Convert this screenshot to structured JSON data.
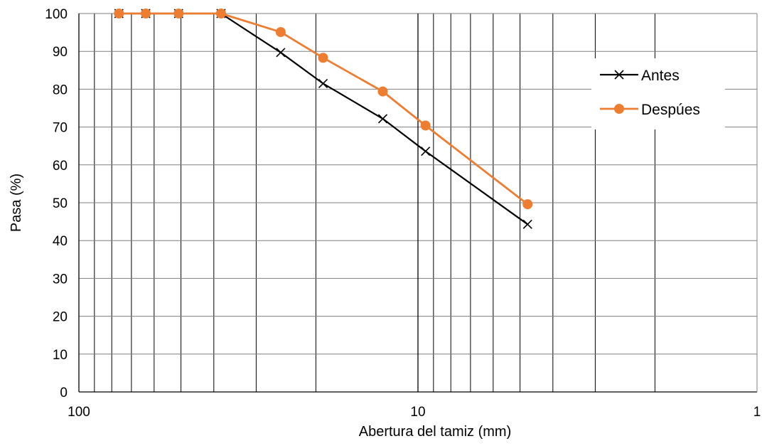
{
  "chart_data": {
    "type": "line",
    "title": "",
    "xlabel": "Abertura del tamiz (mm)",
    "ylabel": "Pasa (%)",
    "x_scale": "log",
    "x_reversed": true,
    "xlim": [
      100,
      1
    ],
    "ylim": [
      0,
      100
    ],
    "y_ticks": [
      "0",
      "10",
      "20",
      "30",
      "40",
      "50",
      "60",
      "70",
      "80",
      "90",
      "100"
    ],
    "x_ticks": [
      "100",
      "10",
      "1"
    ],
    "grid": true,
    "legend": "right",
    "series": [
      {
        "name": "Antes",
        "color": "#000000",
        "marker": "x",
        "x": [
          76.2,
          63.5,
          50.8,
          38.1,
          25.4,
          19.05,
          12.7,
          9.5,
          4.75
        ],
        "y": [
          100,
          100,
          100,
          100,
          89.7,
          81.5,
          72.2,
          63.6,
          44.3
        ]
      },
      {
        "name": "Despúes",
        "color": "#ED7D31",
        "marker": "circle",
        "x": [
          76.2,
          63.5,
          50.8,
          38.1,
          25.4,
          19.05,
          12.7,
          9.5,
          4.75
        ],
        "y": [
          100,
          100,
          100,
          100,
          95.1,
          88.3,
          79.4,
          70.4,
          49.6
        ]
      }
    ]
  }
}
